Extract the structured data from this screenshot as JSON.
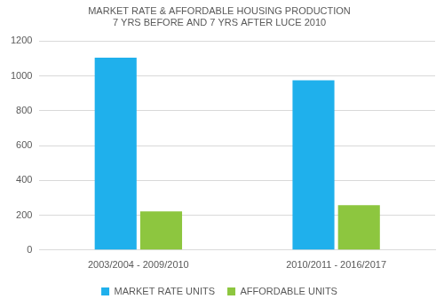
{
  "chart_data": {
    "type": "bar",
    "title": [
      "MARKET RATE & AFFORDABLE HOUSING PRODUCTION",
      "7 YRS BEFORE AND 7 YRS AFTER LUCE 2010"
    ],
    "categories": [
      "2003/2004 - 2009/2010",
      "2010/2011 - 2016/2017"
    ],
    "series": [
      {
        "name": "MARKET RATE UNITS",
        "color": "#1fb0ec",
        "values": [
          1105,
          975
        ]
      },
      {
        "name": "AFFORDABLE UNITS",
        "color": "#8dc63f",
        "values": [
          222,
          258
        ]
      }
    ],
    "ylim": [
      0,
      1200
    ],
    "yticks": [
      0,
      200,
      400,
      600,
      800,
      1000,
      1200
    ],
    "grid": true,
    "legend": "bottom"
  }
}
